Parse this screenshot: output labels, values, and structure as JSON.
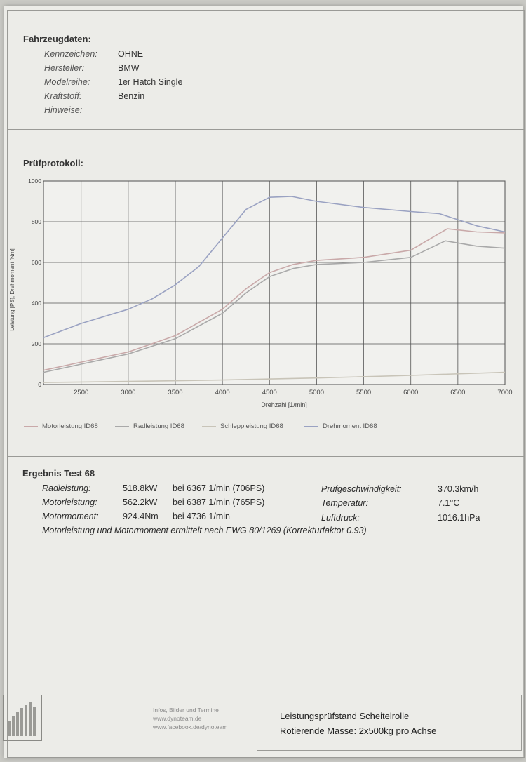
{
  "vehicle": {
    "section_title": "Fahrzeugdaten:",
    "rows": [
      {
        "label": "Kennzeichen:",
        "value": "OHNE"
      },
      {
        "label": "Hersteller:",
        "value": "BMW"
      },
      {
        "label": "Modelreihe:",
        "value": "1er Hatch Single"
      },
      {
        "label": "Kraftstoff:",
        "value": "Benzin"
      },
      {
        "label": "Hinweise:",
        "value": ""
      }
    ]
  },
  "protocol": {
    "section_title": "Prüfprotokoll:"
  },
  "chart_data": {
    "type": "line",
    "xlabel": "Drehzahl [1/min]",
    "ylabel": "Leistung [PS], Drehmoment [Nm]",
    "xlim": [
      2100,
      7000
    ],
    "ylim": [
      0,
      1000
    ],
    "x_ticks": [
      2500,
      3000,
      3500,
      4000,
      4500,
      5000,
      5500,
      6000,
      6500,
      7000
    ],
    "y_ticks": [
      0,
      200,
      400,
      600,
      800,
      1000
    ],
    "grid": true,
    "legend_position": "bottom",
    "series": [
      {
        "name": "Motorleistung ID68",
        "color": "#c9a9a9",
        "x": [
          2100,
          2500,
          3000,
          3500,
          4000,
          4250,
          4500,
          4750,
          5000,
          5500,
          6000,
          6387,
          6700,
          7000
        ],
        "values": [
          70,
          110,
          160,
          240,
          370,
          470,
          550,
          590,
          610,
          625,
          660,
          765,
          750,
          745
        ]
      },
      {
        "name": "Radleistung ID68",
        "color": "#a9a9a9",
        "x": [
          2100,
          2500,
          3000,
          3500,
          4000,
          4250,
          4500,
          4750,
          5000,
          5500,
          6000,
          6367,
          6700,
          7000
        ],
        "values": [
          60,
          100,
          150,
          225,
          350,
          450,
          530,
          570,
          590,
          600,
          625,
          706,
          680,
          670
        ]
      },
      {
        "name": "Schleppleistung ID68",
        "color": "#c8c4b8",
        "x": [
          2100,
          3000,
          4000,
          5000,
          6000,
          7000
        ],
        "values": [
          10,
          15,
          22,
          32,
          45,
          60
        ]
      },
      {
        "name": "Drehmoment ID68",
        "color": "#9aa2c2",
        "x": [
          2100,
          2500,
          3000,
          3250,
          3500,
          3750,
          4000,
          4250,
          4500,
          4736,
          5000,
          5500,
          6000,
          6300,
          6700,
          7000
        ],
        "values": [
          230,
          300,
          370,
          420,
          490,
          580,
          720,
          860,
          920,
          924,
          900,
          870,
          850,
          840,
          780,
          750
        ]
      }
    ]
  },
  "results": {
    "title": "Ergebnis Test 68",
    "rows": [
      {
        "label": "Radleistung:",
        "value": "518.8kW",
        "detail": "bei 6367 1/min (706PS)"
      },
      {
        "label": "Motorleistung:",
        "value": "562.2kW",
        "detail": "bei 6387 1/min (765PS)"
      },
      {
        "label": "Motormoment:",
        "value": "924.4Nm",
        "detail": "bei 4736 1/min"
      }
    ],
    "right_rows": [
      {
        "label": "Prüfgeschwindigkeit:",
        "value": "370.3km/h"
      },
      {
        "label": "Temperatur:",
        "value": "7.1°C"
      },
      {
        "label": "Luftdruck:",
        "value": "1016.1hPa"
      }
    ],
    "note": "Motorleistung und Motormoment ermittelt nach EWG 80/1269 (Korrekturfaktor 0.93)"
  },
  "footer": {
    "info_lines": [
      "Infos, Bilder und Termine",
      "www.dynoteam.de",
      "www.facebook.de/dynoteam"
    ],
    "line1": "Leistungsprüfstand Scheitelrolle",
    "line2": "Rotierende Masse: 2x500kg pro Achse"
  }
}
